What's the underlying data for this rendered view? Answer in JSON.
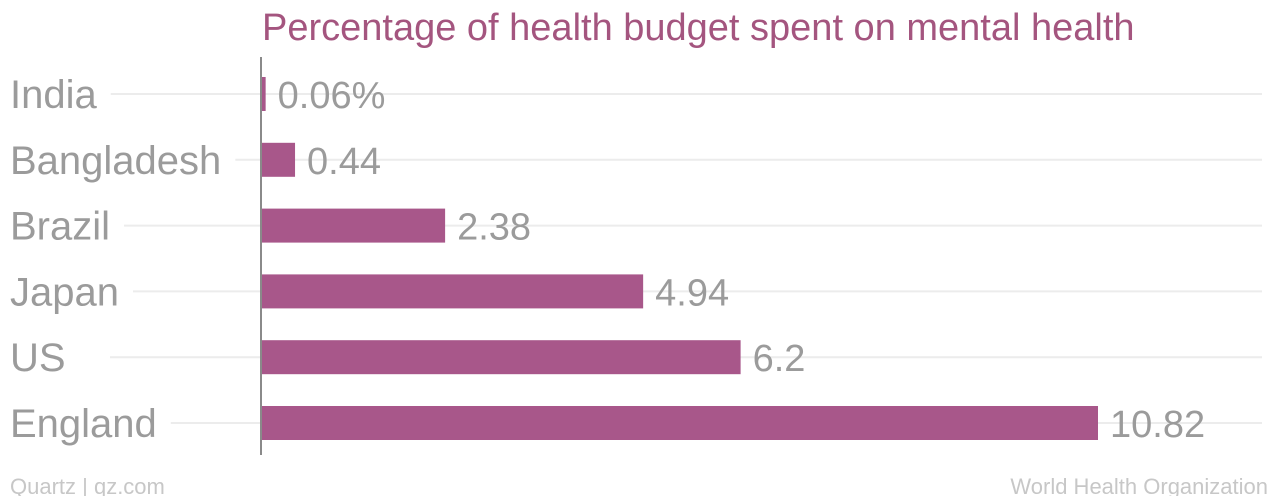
{
  "chart_data": {
    "type": "bar",
    "orientation": "horizontal",
    "title": "Percentage of health budget spent on mental health",
    "categories": [
      "India",
      "Bangladesh",
      "Brazil",
      "Japan",
      "US",
      "England"
    ],
    "values": [
      0.06,
      0.44,
      2.38,
      4.94,
      6.2,
      10.82
    ],
    "value_labels": [
      "0.06%",
      "0.44",
      "2.38",
      "4.94",
      "6.2",
      "10.82"
    ],
    "xlabel": "",
    "ylabel": "",
    "grid": true,
    "bar_color": "#a8578a"
  },
  "footer": {
    "source_left": "Quartz | qz.com",
    "source_right": "World Health Organization"
  },
  "colors": {
    "title": "#a4557f",
    "label": "#9b9b9b",
    "gridline": "#ececec",
    "axis": "#8a8a8a",
    "footer": "#c7c7c7"
  }
}
